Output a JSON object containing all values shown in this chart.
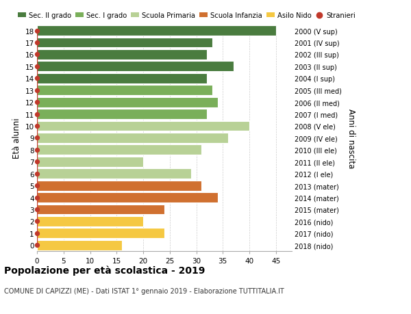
{
  "ages": [
    18,
    17,
    16,
    15,
    14,
    13,
    12,
    11,
    10,
    9,
    8,
    7,
    6,
    5,
    4,
    3,
    2,
    1,
    0
  ],
  "values": [
    45,
    33,
    32,
    37,
    32,
    33,
    34,
    32,
    40,
    36,
    31,
    20,
    29,
    31,
    34,
    24,
    20,
    24,
    16
  ],
  "right_labels": [
    "2000 (V sup)",
    "2001 (IV sup)",
    "2002 (III sup)",
    "2003 (II sup)",
    "2004 (I sup)",
    "2005 (III med)",
    "2006 (II med)",
    "2007 (I med)",
    "2008 (V ele)",
    "2009 (IV ele)",
    "2010 (III ele)",
    "2011 (II ele)",
    "2012 (I ele)",
    "2013 (mater)",
    "2014 (mater)",
    "2015 (mater)",
    "2016 (nido)",
    "2017 (nido)",
    "2018 (nido)"
  ],
  "bar_colors": [
    "#4a7c3f",
    "#4a7c3f",
    "#4a7c3f",
    "#4a7c3f",
    "#4a7c3f",
    "#7aaf5a",
    "#7aaf5a",
    "#7aaf5a",
    "#b8d196",
    "#b8d196",
    "#b8d196",
    "#b8d196",
    "#b8d196",
    "#d07030",
    "#d07030",
    "#d07030",
    "#f5c842",
    "#f5c842",
    "#f5c842"
  ],
  "color_sec2": "#4a7c3f",
  "color_sec1": "#7aaf5a",
  "color_prim": "#b8d196",
  "color_infanzia": "#d07030",
  "color_nido": "#f5c842",
  "color_stranieri": "#c0392b",
  "xlabel_ticks": [
    0,
    5,
    10,
    15,
    20,
    25,
    30,
    35,
    40,
    45
  ],
  "xlim": [
    0,
    48
  ],
  "title": "Popolazione per età scolastica - 2019",
  "subtitle": "COMUNE DI CAPIZZI (ME) - Dati ISTAT 1° gennaio 2019 - Elaborazione TUTTITALIA.IT",
  "ylabel": "Età alunni",
  "right_ylabel": "Anni di nascita",
  "legend_labels": [
    "Sec. II grado",
    "Sec. I grado",
    "Scuola Primaria",
    "Scuola Infanzia",
    "Asilo Nido",
    "Stranieri"
  ],
  "bg_color": "#ffffff",
  "grid_color": "#cccccc"
}
